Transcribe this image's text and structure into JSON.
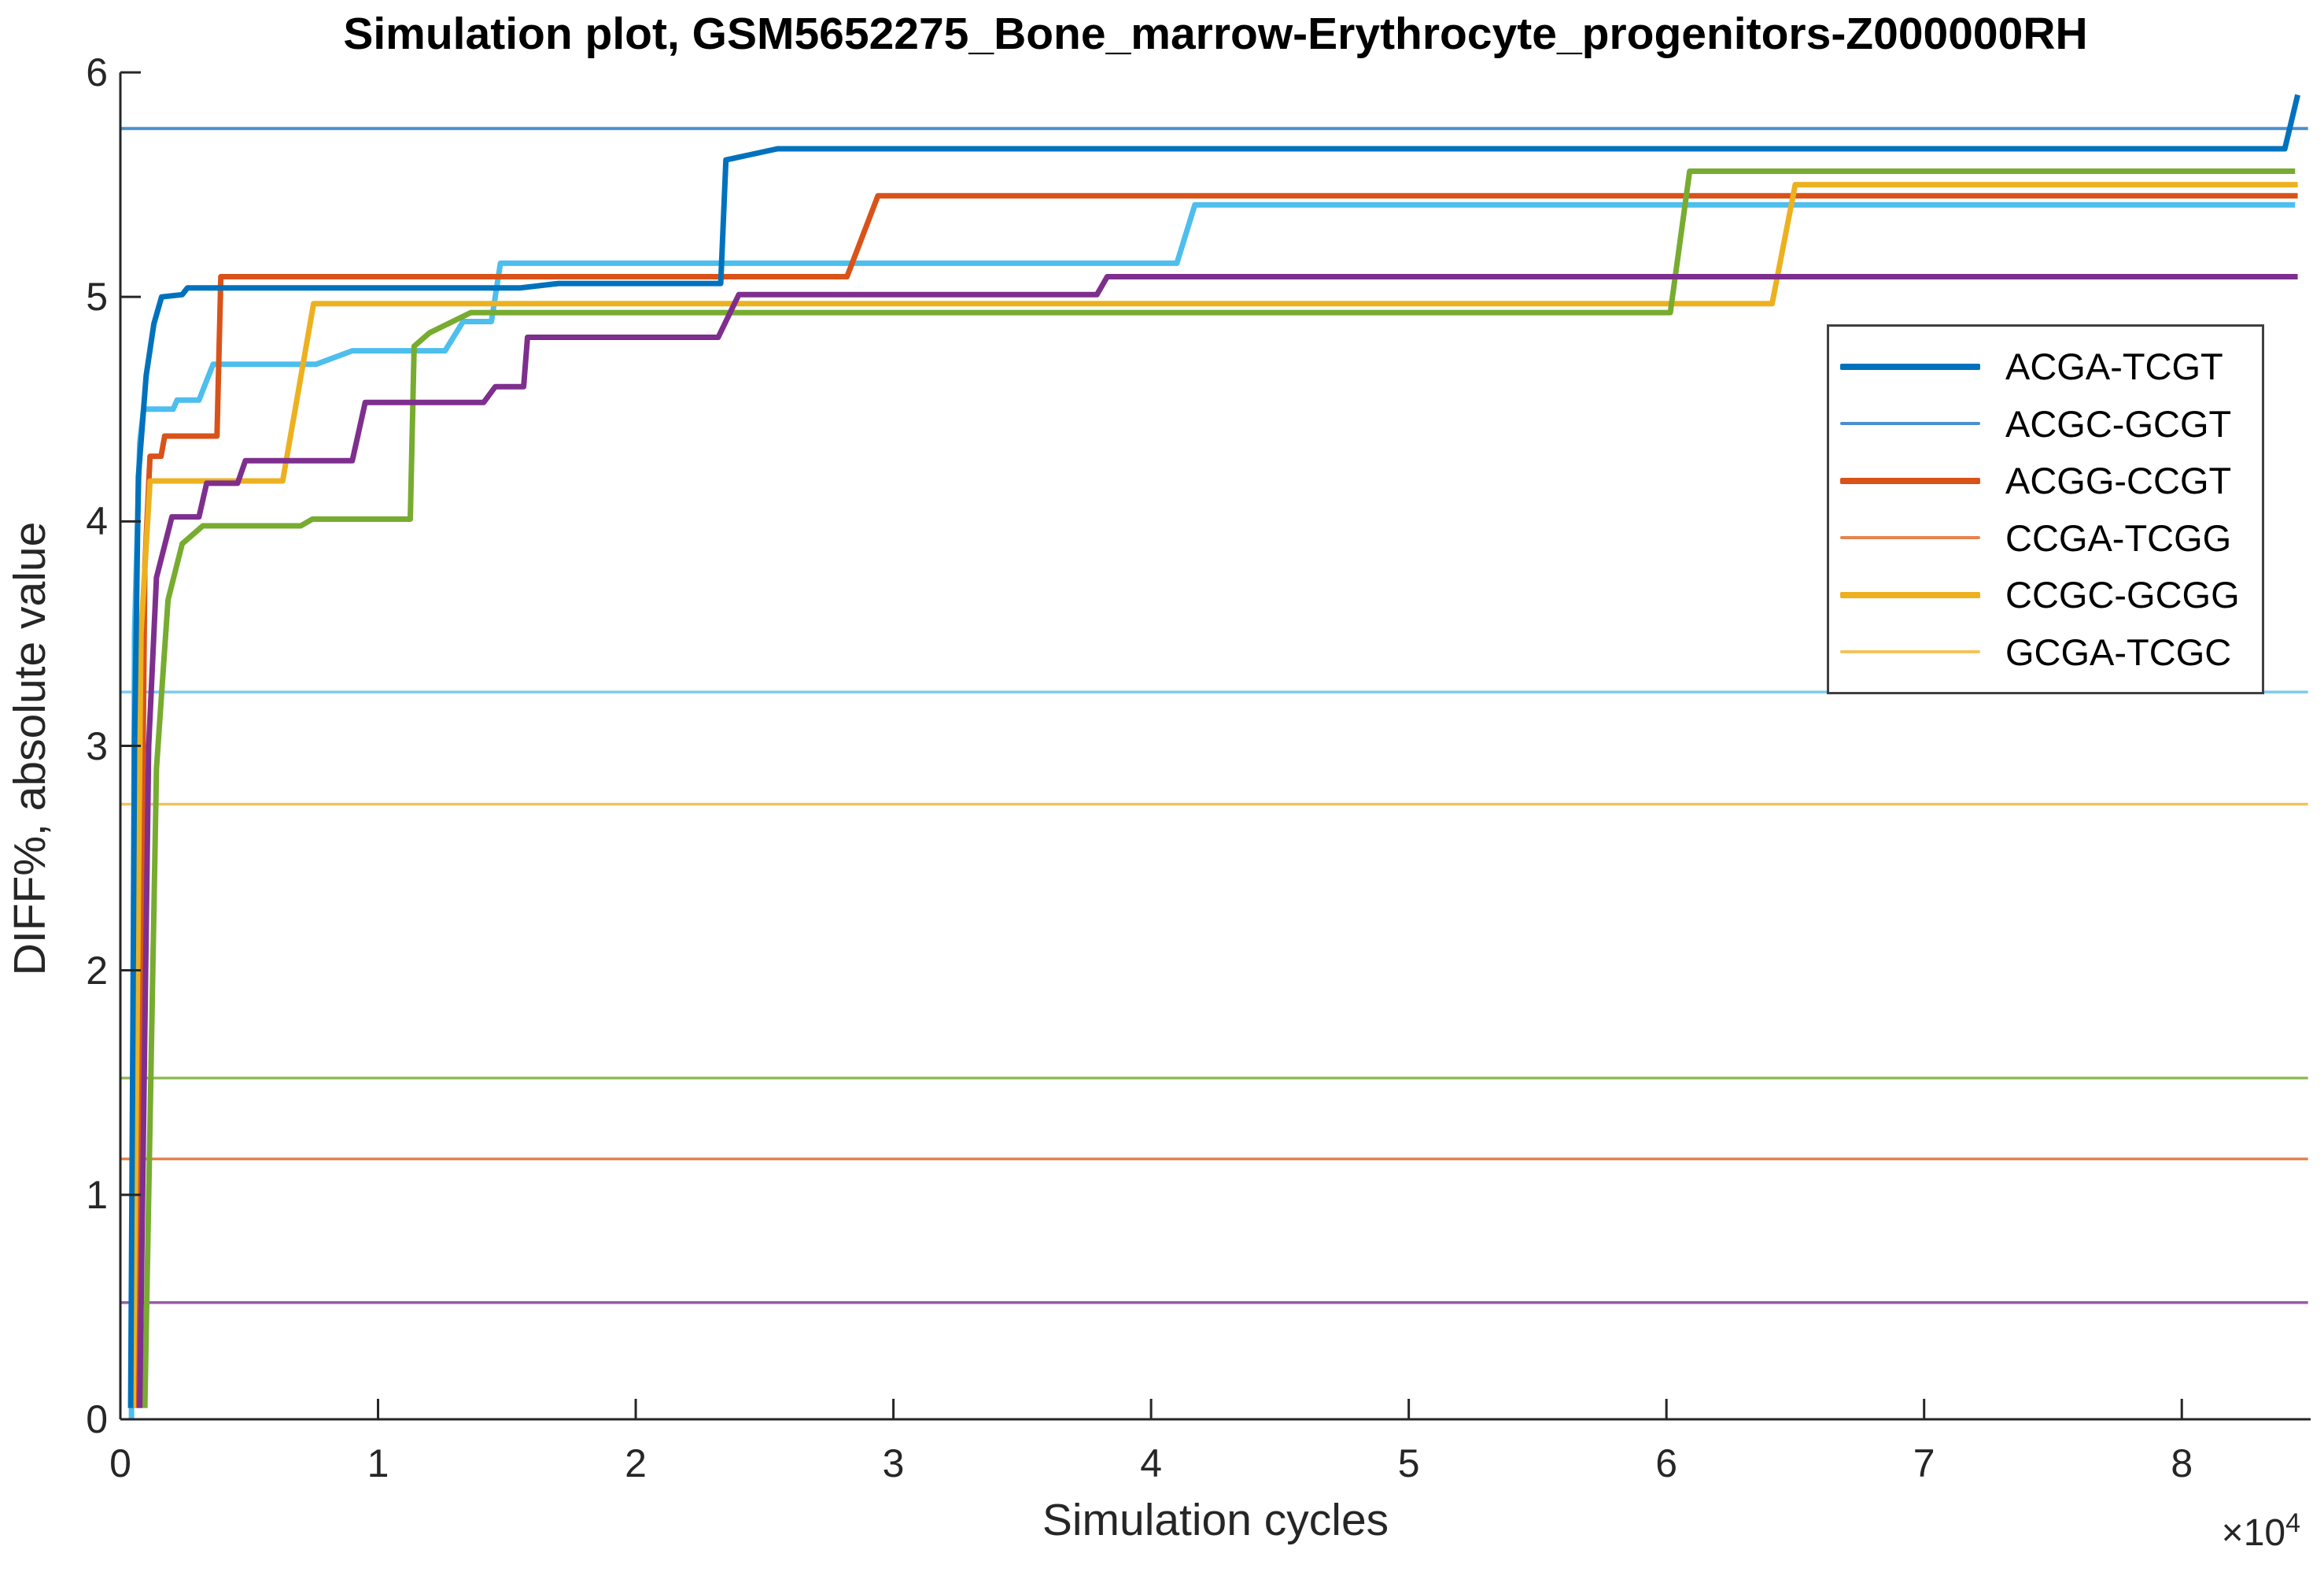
{
  "title": "Simulation plot, GSM5652275_Bone_marrow-Erythrocyte_progenitors-Z000000RH",
  "axes": {
    "xlabel": "Simulation cycles",
    "ylabel": "DIFF%, absolute value",
    "x_offset_base": "×10",
    "x_offset_exp": "4"
  },
  "colors": {
    "axis": "#262626",
    "tick_text": "#262626",
    "legend_border": "#404040"
  },
  "legend": {
    "position": "upper right",
    "entries": [
      {
        "label": "ACGA-TCGT",
        "color": "#0072BD",
        "thick": true
      },
      {
        "label": "ACGC-GCGT",
        "color": "#4A90D0",
        "thick": false
      },
      {
        "label": "ACGG-CCGT",
        "color": "#D95319",
        "thick": true
      },
      {
        "label": "CCGA-TCGG",
        "color": "#E8834E",
        "thick": false
      },
      {
        "label": "CCGC-GCGG",
        "color": "#EDB120",
        "thick": true
      },
      {
        "label": "GCGA-TCGC",
        "color": "#F3C35C",
        "thick": false
      }
    ]
  },
  "chart_data": {
    "type": "line",
    "title": "Simulation plot, GSM5652275_Bone_marrow-Erythrocyte_progenitors-Z000000RH",
    "xlabel": "Simulation cycles",
    "ylabel": "DIFF%, absolute value",
    "x_unit_multiplier": "1e4",
    "xlim": [
      0,
      85000
    ],
    "ylim": [
      0,
      6
    ],
    "x_ticks": [
      0,
      1,
      2,
      3,
      4,
      5,
      6,
      7,
      8
    ],
    "x_tick_scale": 10000,
    "y_ticks": [
      0,
      1,
      2,
      3,
      4,
      5,
      6
    ],
    "grid": false,
    "legend_position": "upper right",
    "draw_order": [
      1,
      3,
      5,
      7,
      9,
      11,
      10,
      2,
      4,
      8,
      6,
      0
    ],
    "series": [
      {
        "id": "acga-tcgt",
        "label": "ACGA-TCGT",
        "color": "#0072BD",
        "width": 7,
        "points": [
          [
            400,
            0.05
          ],
          [
            550,
            3.0
          ],
          [
            700,
            4.2
          ],
          [
            1000,
            4.65
          ],
          [
            1300,
            4.88
          ],
          [
            1600,
            5.0
          ],
          [
            2400,
            5.01
          ],
          [
            2600,
            5.04
          ],
          [
            15500,
            5.04
          ],
          [
            17000,
            5.06
          ],
          [
            23300,
            5.06
          ],
          [
            23500,
            5.61
          ],
          [
            24300,
            5.63
          ],
          [
            25500,
            5.66
          ],
          [
            84000,
            5.66
          ],
          [
            84500,
            5.9
          ]
        ]
      },
      {
        "id": "acgc-gcgt",
        "label": "ACGC-GCGT",
        "color": "#4A90D0",
        "width": 4,
        "points": [
          [
            0,
            5.75
          ],
          [
            84900,
            5.75
          ]
        ]
      },
      {
        "id": "acgg-ccgt",
        "label": "ACGG-CCGT",
        "color": "#D95319",
        "width": 7,
        "points": [
          [
            650,
            0.05
          ],
          [
            950,
            3.8
          ],
          [
            1150,
            4.29
          ],
          [
            1580,
            4.29
          ],
          [
            1720,
            4.38
          ],
          [
            3750,
            4.38
          ],
          [
            3900,
            5.09
          ],
          [
            28200,
            5.09
          ],
          [
            29400,
            5.45
          ],
          [
            84500,
            5.45
          ]
        ]
      },
      {
        "id": "ccga-tcgg",
        "label": "CCGA-TCGG",
        "color": "#E8834E",
        "width": 3.5,
        "points": [
          [
            0,
            1.16
          ],
          [
            84900,
            1.16
          ]
        ]
      },
      {
        "id": "ccgc-gcgg",
        "label": "CCGC-GCGG",
        "color": "#EDB120",
        "width": 7,
        "points": [
          [
            500,
            0.05
          ],
          [
            800,
            3.5
          ],
          [
            1150,
            4.18
          ],
          [
            6300,
            4.18
          ],
          [
            7500,
            4.97
          ],
          [
            64100,
            4.97
          ],
          [
            65000,
            5.5
          ],
          [
            84500,
            5.5
          ]
        ]
      },
      {
        "id": "gcga-tcgc",
        "label": "GCGA-TCGC",
        "color": "#F3C35C",
        "width": 3.5,
        "points": [
          [
            0,
            2.74
          ],
          [
            84900,
            2.74
          ]
        ]
      },
      {
        "id": "series-purple-step",
        "label": "",
        "color": "#7E2F8E",
        "width": 7,
        "points": [
          [
            750,
            0.05
          ],
          [
            1100,
            3.0
          ],
          [
            1400,
            3.75
          ],
          [
            2000,
            4.02
          ],
          [
            3050,
            4.02
          ],
          [
            3350,
            4.17
          ],
          [
            4550,
            4.17
          ],
          [
            4850,
            4.27
          ],
          [
            9000,
            4.27
          ],
          [
            9500,
            4.53
          ],
          [
            14100,
            4.53
          ],
          [
            14550,
            4.6
          ],
          [
            15650,
            4.6
          ],
          [
            15800,
            4.82
          ],
          [
            23200,
            4.82
          ],
          [
            24000,
            5.01
          ],
          [
            37900,
            5.01
          ],
          [
            38300,
            5.09
          ],
          [
            84500,
            5.09
          ]
        ]
      },
      {
        "id": "series-purple-flat",
        "label": "",
        "color": "#9B59A8",
        "width": 3.5,
        "points": [
          [
            0,
            0.52
          ],
          [
            84900,
            0.52
          ]
        ]
      },
      {
        "id": "series-green-step",
        "label": "",
        "color": "#77AC30",
        "width": 7,
        "points": [
          [
            950,
            0.05
          ],
          [
            1400,
            2.9
          ],
          [
            1850,
            3.65
          ],
          [
            2400,
            3.9
          ],
          [
            3200,
            3.98
          ],
          [
            7000,
            3.98
          ],
          [
            7450,
            4.01
          ],
          [
            11250,
            4.01
          ],
          [
            11400,
            4.78
          ],
          [
            12000,
            4.84
          ],
          [
            13600,
            4.93
          ],
          [
            60150,
            4.93
          ],
          [
            60900,
            5.56
          ],
          [
            84400,
            5.56
          ]
        ]
      },
      {
        "id": "series-green-flat",
        "label": "",
        "color": "#8DBE56",
        "width": 3.5,
        "points": [
          [
            0,
            1.52
          ],
          [
            84900,
            1.52
          ]
        ]
      },
      {
        "id": "series-cyan-step",
        "label": "",
        "color": "#4DBEEE",
        "width": 7,
        "points": [
          [
            430,
            0.0
          ],
          [
            550,
            3.5
          ],
          [
            750,
            4.35
          ],
          [
            900,
            4.5
          ],
          [
            2050,
            4.5
          ],
          [
            2200,
            4.54
          ],
          [
            3050,
            4.54
          ],
          [
            3600,
            4.7
          ],
          [
            7600,
            4.7
          ],
          [
            9000,
            4.76
          ],
          [
            12600,
            4.76
          ],
          [
            13300,
            4.89
          ],
          [
            14400,
            4.89
          ],
          [
            14750,
            5.15
          ],
          [
            41000,
            5.15
          ],
          [
            41700,
            5.41
          ],
          [
            84400,
            5.41
          ]
        ]
      },
      {
        "id": "series-lightblue-flat",
        "label": "",
        "color": "#7CCBF0",
        "width": 3.5,
        "points": [
          [
            0,
            3.24
          ],
          [
            84900,
            3.24
          ]
        ]
      }
    ]
  }
}
